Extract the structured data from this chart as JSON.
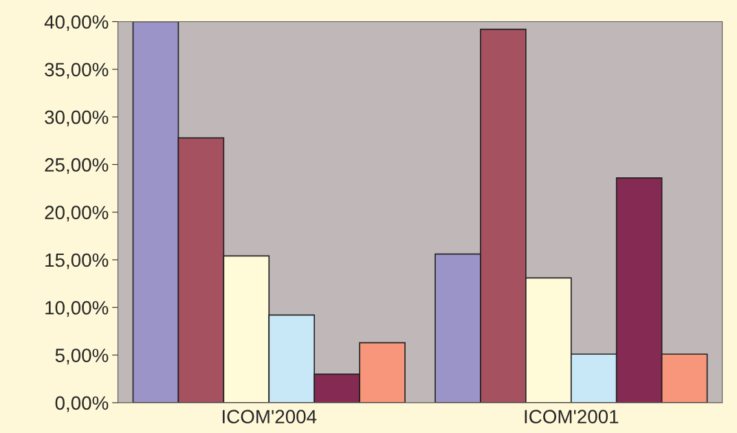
{
  "chart_data": {
    "type": "bar",
    "categories": [
      "ICOM'2004",
      "ICOM'2001"
    ],
    "series": [
      {
        "color": "#9b94c8",
        "values": [
          40.0,
          15.6
        ]
      },
      {
        "color": "#a5515f",
        "values": [
          27.8,
          39.2
        ]
      },
      {
        "color": "#fffad8",
        "values": [
          15.4,
          13.1
        ]
      },
      {
        "color": "#c8e8f8",
        "values": [
          9.2,
          5.1
        ]
      },
      {
        "color": "#852a53",
        "values": [
          3.0,
          23.6
        ]
      },
      {
        "color": "#f7967a",
        "values": [
          6.3,
          5.1
        ]
      }
    ],
    "ylim": [
      0,
      40
    ],
    "yticks": [
      {
        "value": 0,
        "label": "0,00%"
      },
      {
        "value": 5,
        "label": "5,00%"
      },
      {
        "value": 10,
        "label": "10,00%"
      },
      {
        "value": 15,
        "label": "15,00%"
      },
      {
        "value": 20,
        "label": "20,00%"
      },
      {
        "value": 25,
        "label": "25,00%"
      },
      {
        "value": 30,
        "label": "30,00%"
      },
      {
        "value": 35,
        "label": "35,00%"
      },
      {
        "value": 40,
        "label": "40,00%"
      }
    ],
    "grid": false
  }
}
